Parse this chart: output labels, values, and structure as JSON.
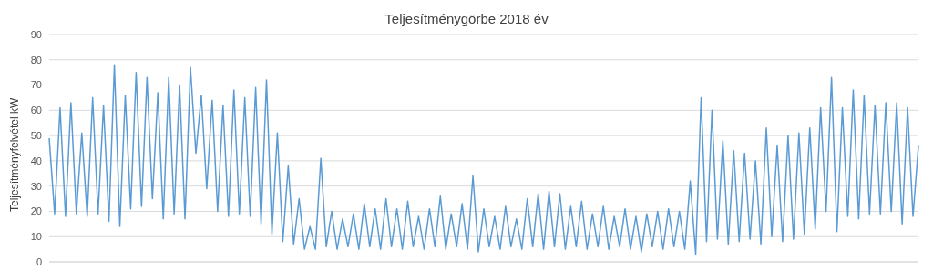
{
  "chart_data": {
    "type": "line",
    "title": "Teljesítménygörbe 2018 év",
    "ylabel": "Teljesítményfelvétel kW",
    "categories": [
      null,
      null,
      null,
      null,
      null,
      null,
      null,
      null,
      null,
      null,
      null,
      null,
      null,
      null,
      null,
      null,
      null,
      null,
      null,
      null,
      null,
      null,
      null,
      null,
      null,
      null,
      null,
      null,
      null,
      null,
      null,
      null,
      null,
      null,
      null,
      null,
      null,
      null,
      null,
      null,
      null,
      null,
      null,
      null,
      null,
      null,
      null,
      null,
      null,
      null,
      null,
      null,
      null,
      null,
      null,
      null,
      null,
      null,
      null,
      null,
      null,
      null,
      null,
      null,
      null,
      null,
      null,
      null,
      null,
      null,
      null,
      null,
      null,
      null,
      null,
      null,
      null,
      null,
      null,
      null,
      null,
      null,
      null,
      null,
      null,
      null,
      null,
      null,
      null,
      null,
      null,
      null,
      null,
      null,
      null,
      null,
      null,
      null,
      null,
      null,
      null,
      null,
      null,
      null,
      null,
      null,
      null,
      null,
      null,
      null,
      null,
      null,
      null,
      null,
      null,
      null,
      null,
      null,
      null,
      null,
      null,
      null,
      null,
      null,
      null,
      null,
      null,
      null,
      null,
      null,
      null,
      null,
      null,
      null,
      null,
      null,
      null,
      null,
      null,
      null,
      null,
      null,
      null,
      null,
      null,
      null,
      null,
      null,
      null,
      null,
      null,
      null,
      null,
      null,
      null,
      null,
      null,
      null,
      null,
      null,
      null
    ],
    "series": [
      {
        "color": "#5b9bd5",
        "values": [
          49,
          19,
          61,
          18,
          63,
          19,
          51,
          18,
          65,
          19,
          62,
          16,
          78,
          14,
          66,
          21,
          75,
          22,
          73,
          25,
          67,
          17,
          73,
          19,
          70,
          17,
          77,
          43,
          66,
          29,
          64,
          20,
          62,
          18,
          68,
          19,
          65,
          18,
          69,
          15,
          72,
          11,
          51,
          8,
          38,
          7,
          25,
          5,
          14,
          5,
          41,
          6,
          20,
          5,
          17,
          6,
          19,
          5,
          23,
          6,
          21,
          5,
          25,
          6,
          21,
          5,
          24,
          6,
          18,
          5,
          21,
          6,
          26,
          5,
          19,
          6,
          23,
          5,
          34,
          4,
          21,
          6,
          18,
          5,
          22,
          6,
          17,
          5,
          25,
          6,
          27,
          5,
          28,
          6,
          27,
          5,
          22,
          6,
          24,
          5,
          19,
          6,
          22,
          5,
          18,
          6,
          21,
          5,
          18,
          4,
          19,
          6,
          20,
          5,
          21,
          6,
          20,
          5,
          32,
          3,
          65,
          8,
          60,
          9,
          48,
          7,
          44,
          8,
          43,
          9,
          40,
          7,
          53,
          10,
          46,
          8,
          50,
          9,
          51,
          11,
          53,
          13,
          61,
          20,
          73,
          12,
          61,
          18,
          68,
          17,
          66,
          19,
          62,
          19,
          63,
          20,
          63,
          15,
          61,
          18,
          46
        ]
      }
    ],
    "ylim": [
      0,
      90
    ],
    "yticks": [
      0,
      10,
      20,
      30,
      40,
      50,
      60,
      70,
      80,
      90
    ],
    "grid": "y",
    "tick_labels": "y",
    "marker": "none",
    "line_style": "solid",
    "legend": false
  }
}
